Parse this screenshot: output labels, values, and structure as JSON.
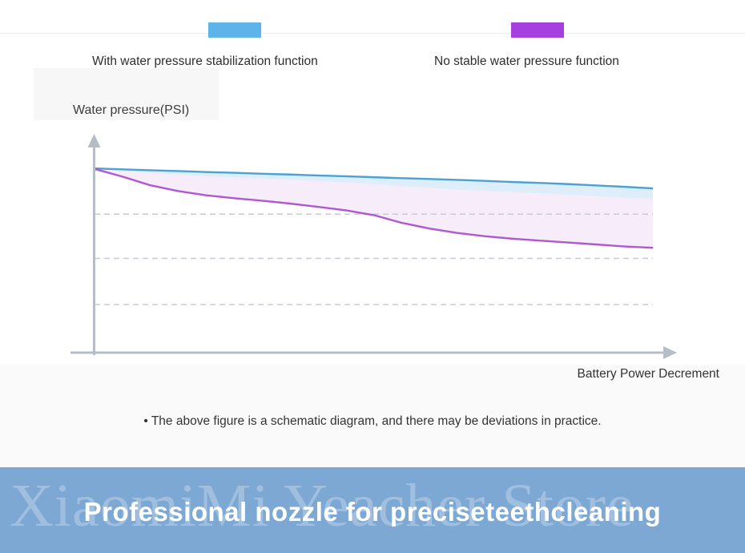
{
  "legend": {
    "items": [
      {
        "label": "With water pressure stabilization function",
        "color": "#5eb3ea"
      },
      {
        "label": "No stable water pressure function",
        "color": "#a63fe0"
      }
    ]
  },
  "chart": {
    "y_axis_label": "Water pressure(PSI)",
    "x_axis_label": "Battery Power Decrement"
  },
  "chart_data": {
    "type": "line",
    "title": "",
    "xlabel": "Battery Power Decrement",
    "ylabel": "Water pressure(PSI)",
    "axis_ticks": "none (schematic diagram, no numeric scale shown)",
    "legend_position": "top",
    "grid": "horizontal dashed gridlines",
    "xlim": [
      0,
      100
    ],
    "ylim": [
      0,
      100
    ],
    "y_units": "relative water pressure (percent of axis height, estimated from pixels)",
    "x_units": "battery power decrement (relative)",
    "y_gridlines_dashed": [
      72,
      49,
      25
    ],
    "x": [
      0,
      5,
      10,
      15,
      20,
      25,
      30,
      35,
      40,
      45,
      50,
      55,
      60,
      65,
      70,
      75,
      80,
      85,
      90,
      95,
      100
    ],
    "series": [
      {
        "name": "With water pressure stabilization function",
        "color": "#4ba1d6",
        "area_fill": "#ddeefa",
        "values": [
          95.8,
          95.3,
          94.8,
          94.4,
          93.9,
          93.5,
          93.0,
          92.6,
          92.1,
          91.7,
          91.2,
          90.7,
          90.3,
          89.8,
          89.3,
          88.7,
          88.2,
          87.6,
          86.9,
          86.2,
          85.4
        ]
      },
      {
        "name": "No stable water pressure function",
        "color": "#b257d2",
        "area_fill": "#f6ecfa",
        "values": [
          95.5,
          91.5,
          87.0,
          84.0,
          81.8,
          80.3,
          79.0,
          77.5,
          75.8,
          74.0,
          71.5,
          67.5,
          64.5,
          62.2,
          60.5,
          59.2,
          58.2,
          57.2,
          56.2,
          55.2,
          54.5
        ]
      }
    ]
  },
  "note": {
    "text": "• The above figure is a schematic diagram, and there may be deviations in practice."
  },
  "banner": {
    "title": "Professional nozzle for preciseteethcleaning",
    "watermark": "XiaomiMi Yeacher Store",
    "background": "#7da8d4"
  }
}
